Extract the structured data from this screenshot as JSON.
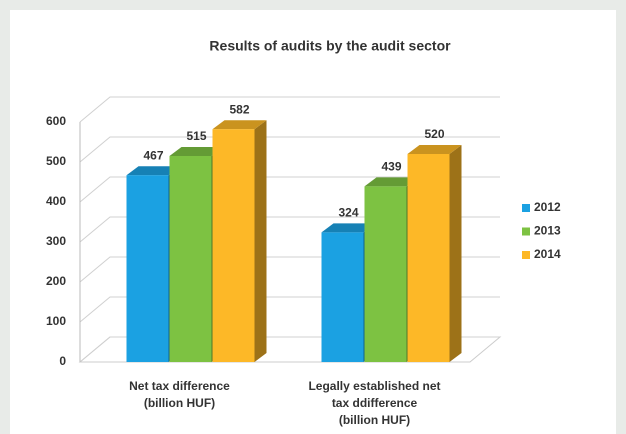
{
  "chart_data": {
    "type": "bar3d",
    "title": "Results of audits by the audit sector",
    "categories": [
      [
        "Net tax difference",
        "(billion HUF)"
      ],
      [
        "Legally established net",
        "tax ddifference",
        "(billion HUF)"
      ]
    ],
    "series": [
      {
        "name": "2012",
        "color": "#1ba1e2",
        "values": [
          467,
          324
        ]
      },
      {
        "name": "2013",
        "color": "#7dc242",
        "values": [
          515,
          439
        ]
      },
      {
        "name": "2014",
        "color": "#fdb827",
        "values": [
          582,
          520
        ]
      }
    ],
    "ylim": [
      0,
      600
    ],
    "yticks": [
      0,
      100,
      200,
      300,
      400,
      500,
      600
    ],
    "grid": true,
    "legend": "right"
  }
}
